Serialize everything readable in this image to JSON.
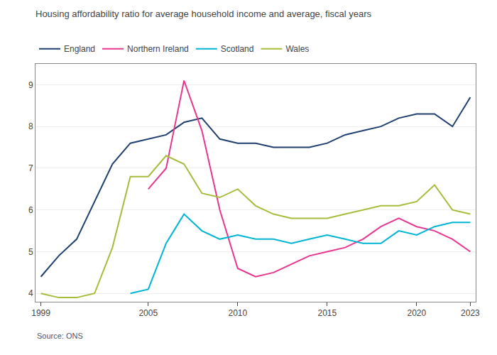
{
  "chart_data": {
    "type": "line",
    "title": "Housing affordability ratio for average household income and average, fiscal years",
    "annotations": [
      "Source: ONS"
    ],
    "x": [
      1999,
      2000,
      2001,
      2002,
      2003,
      2004,
      2005,
      2006,
      2007,
      2008,
      2009,
      2010,
      2011,
      2012,
      2013,
      2014,
      2015,
      2016,
      2017,
      2018,
      2019,
      2020,
      2021,
      2022,
      2023
    ],
    "series": [
      {
        "name": "England",
        "color": "#1f3f6e",
        "values": [
          4.4,
          4.9,
          5.3,
          6.2,
          7.1,
          7.6,
          7.7,
          7.8,
          8.1,
          8.2,
          7.7,
          7.6,
          7.6,
          7.5,
          7.5,
          7.5,
          7.6,
          7.8,
          7.9,
          8.0,
          8.2,
          8.3,
          8.3,
          8.0,
          8.7
        ]
      },
      {
        "name": "Northern Ireland",
        "color": "#e8368f",
        "values": [
          null,
          null,
          null,
          null,
          null,
          null,
          6.5,
          7.0,
          9.1,
          7.9,
          6.0,
          4.6,
          4.4,
          4.5,
          4.7,
          4.9,
          5.0,
          5.1,
          5.3,
          5.6,
          5.8,
          5.6,
          5.5,
          5.3,
          5.0
        ]
      },
      {
        "name": "Scotland",
        "color": "#00b5d4",
        "values": [
          null,
          null,
          null,
          null,
          null,
          4.0,
          4.1,
          5.2,
          5.9,
          5.5,
          5.3,
          5.4,
          5.3,
          5.3,
          5.2,
          5.3,
          5.4,
          5.3,
          5.2,
          5.2,
          5.5,
          5.4,
          5.6,
          5.7,
          5.7
        ]
      },
      {
        "name": "Wales",
        "color": "#a8bb3b",
        "values": [
          4.0,
          3.9,
          3.9,
          4.0,
          5.1,
          6.8,
          6.8,
          7.3,
          7.1,
          6.4,
          6.3,
          6.5,
          6.1,
          5.9,
          5.8,
          5.8,
          5.8,
          5.9,
          6.0,
          6.1,
          6.1,
          6.2,
          6.6,
          6.0,
          5.9
        ]
      }
    ],
    "xlim": [
      1998.7,
      2023.3
    ],
    "xticks": [
      1999,
      2005,
      2010,
      2015,
      2020,
      2023
    ],
    "ylim": [
      3.8,
      9.5
    ],
    "yticks": [
      4,
      5,
      6,
      7,
      8,
      9
    ],
    "grid": "y",
    "legend": "top"
  }
}
